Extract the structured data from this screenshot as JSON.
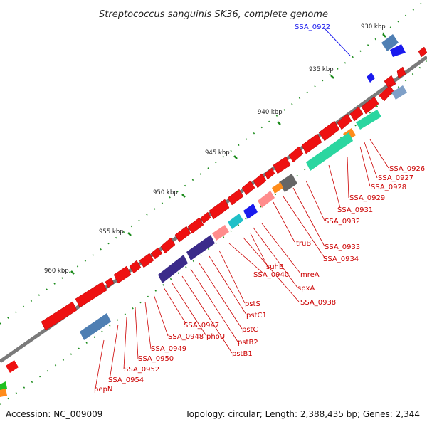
{
  "title": "Streptococcus sanguinis SK36, complete genome",
  "accession": "Accession: NC_009009",
  "summary": "Topology: circular; Length: 2,388,435 bp; Genes: 2,344",
  "tick_labels": [
    "930 kbp",
    "935 kbp",
    "940 kbp",
    "945 kbp",
    "950 kbp",
    "955 kbp",
    "960 kbp"
  ],
  "highlight_label": "SSA_0922",
  "gene_labels": [
    "SSA_0926",
    "SSA_0927",
    "SSA_0928",
    "SSA_0929",
    "SSA_0931",
    "SSA_0932",
    "SSA_0933",
    "SSA_0934",
    "truB",
    "mreA",
    "spxA",
    "SSA_0938",
    "suhB",
    "SSA_0940",
    "pstS",
    "pstC1",
    "pstC",
    "pstB2",
    "pstB1",
    "phoU",
    "SSA_0947",
    "SSA_0948",
    "SSA_0949",
    "SSA_0950",
    "SSA_0952",
    "SSA_0954",
    "pepN"
  ],
  "colors": {
    "forward_gene": "#ee1111",
    "label_red": "#cc0000",
    "label_blue": "#1a1aee",
    "backbone": "#7a7a7a",
    "tick": "#1a8a1a"
  }
}
